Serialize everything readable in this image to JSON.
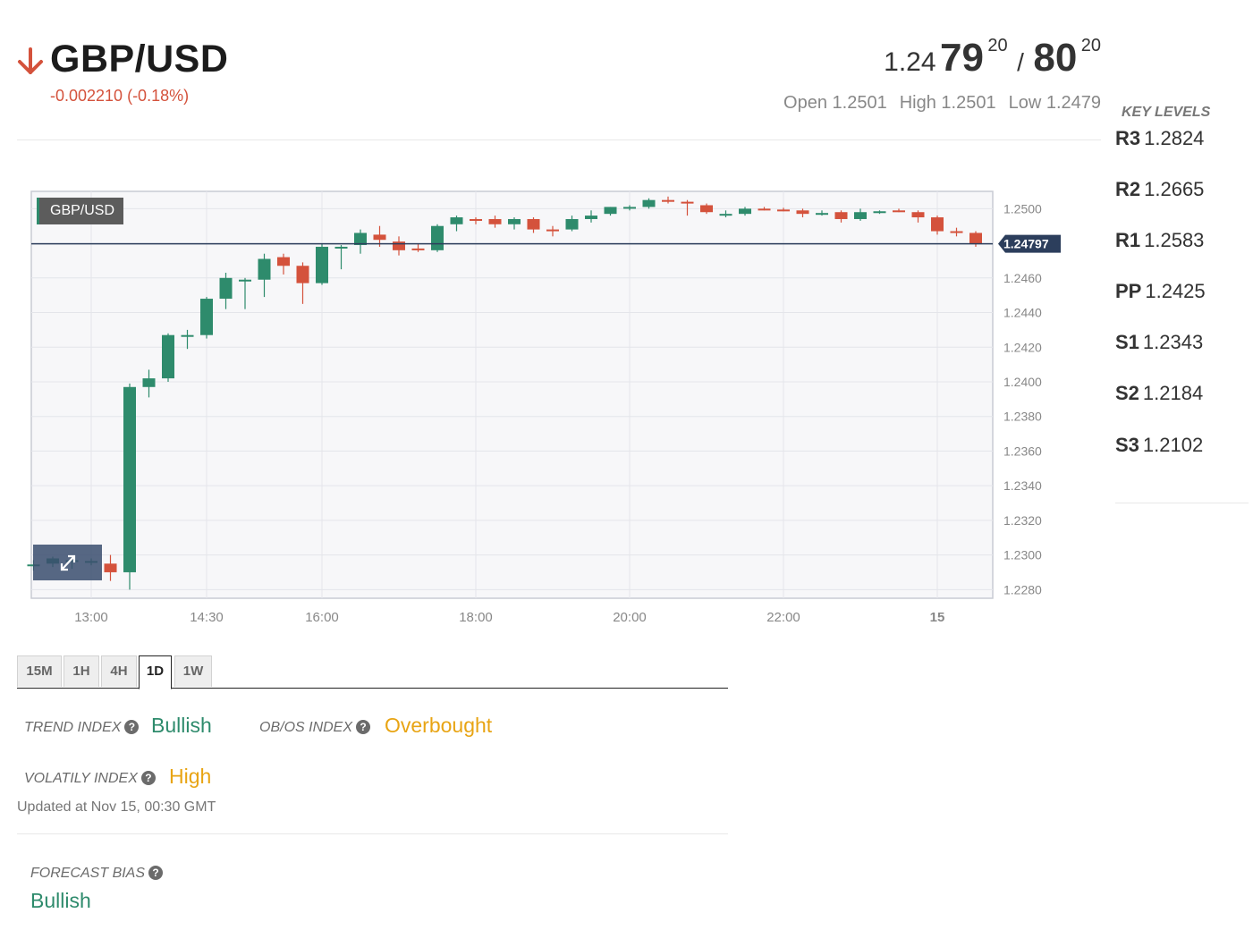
{
  "header": {
    "pair": "GBP/USD",
    "change": "-0.002210 (-0.18%)",
    "direction": "down",
    "bid_small": "1.24",
    "bid_big": "79",
    "bid_sup": "20",
    "slash": "/",
    "ask_big": "80",
    "ask_sup": "20",
    "open": "Open 1.2501",
    "high": "High 1.2501",
    "low": "Low 1.2479"
  },
  "key_levels": {
    "title": "KEY LEVELS",
    "items": [
      {
        "name": "R3",
        "value": "1.2824"
      },
      {
        "name": "R2",
        "value": "1.2665"
      },
      {
        "name": "R1",
        "value": "1.2583"
      },
      {
        "name": "PP",
        "value": "1.2425"
      },
      {
        "name": "S1",
        "value": "1.2343"
      },
      {
        "name": "S2",
        "value": "1.2184"
      },
      {
        "name": "S3",
        "value": "1.2102"
      }
    ]
  },
  "chart_data": {
    "type": "candlestick",
    "title": "GBP/USD",
    "current_price": 1.24797,
    "current_price_label": "1.24797",
    "ylim": [
      1.2275,
      1.251
    ],
    "y_ticks": [
      "1.2500",
      "1.2480",
      "1.2460",
      "1.2440",
      "1.2420",
      "1.2400",
      "1.2380",
      "1.2360",
      "1.2340",
      "1.2320",
      "1.2300",
      "1.2280"
    ],
    "x_ticks": [
      {
        "label": "13:00",
        "index": 3
      },
      {
        "label": "14:30",
        "index": 9
      },
      {
        "label": "16:00",
        "index": 15
      },
      {
        "label": "18:00",
        "index": 23
      },
      {
        "label": "20:00",
        "index": 31
      },
      {
        "label": "22:00",
        "index": 39
      },
      {
        "label": "15",
        "index": 47
      }
    ],
    "candles": [
      {
        "o": 1.2294,
        "h": 1.2297,
        "l": 1.2291,
        "c": 1.22945
      },
      {
        "o": 1.2295,
        "h": 1.2299,
        "l": 1.2293,
        "c": 1.2298
      },
      {
        "o": 1.2296,
        "h": 1.2299,
        "l": 1.2292,
        "c": 1.2297
      },
      {
        "o": 1.2296,
        "h": 1.2298,
        "l": 1.2294,
        "c": 1.22965
      },
      {
        "o": 1.2295,
        "h": 1.23,
        "l": 1.2285,
        "c": 1.229
      },
      {
        "o": 1.229,
        "h": 1.2399,
        "l": 1.228,
        "c": 1.2397
      },
      {
        "o": 1.2397,
        "h": 1.2407,
        "l": 1.2391,
        "c": 1.2402
      },
      {
        "o": 1.2402,
        "h": 1.2428,
        "l": 1.24,
        "c": 1.2427
      },
      {
        "o": 1.2426,
        "h": 1.243,
        "l": 1.2419,
        "c": 1.2427
      },
      {
        "o": 1.2427,
        "h": 1.2449,
        "l": 1.2425,
        "c": 1.2448
      },
      {
        "o": 1.2448,
        "h": 1.2463,
        "l": 1.2442,
        "c": 1.246
      },
      {
        "o": 1.2459,
        "h": 1.246,
        "l": 1.2442,
        "c": 1.2459
      },
      {
        "o": 1.2459,
        "h": 1.2474,
        "l": 1.2449,
        "c": 1.2471
      },
      {
        "o": 1.2472,
        "h": 1.2474,
        "l": 1.2462,
        "c": 1.2467
      },
      {
        "o": 1.2467,
        "h": 1.2469,
        "l": 1.2445,
        "c": 1.2457
      },
      {
        "o": 1.2457,
        "h": 1.248,
        "l": 1.2456,
        "c": 1.2478
      },
      {
        "o": 1.2478,
        "h": 1.2479,
        "l": 1.2465,
        "c": 1.2478
      },
      {
        "o": 1.2479,
        "h": 1.2488,
        "l": 1.2474,
        "c": 1.2486
      },
      {
        "o": 1.2485,
        "h": 1.249,
        "l": 1.2478,
        "c": 1.2482
      },
      {
        "o": 1.2481,
        "h": 1.2484,
        "l": 1.2473,
        "c": 1.2476
      },
      {
        "o": 1.2477,
        "h": 1.248,
        "l": 1.2475,
        "c": 1.2476
      },
      {
        "o": 1.2476,
        "h": 1.2491,
        "l": 1.2475,
        "c": 1.249
      },
      {
        "o": 1.2491,
        "h": 1.2496,
        "l": 1.2487,
        "c": 1.2495
      },
      {
        "o": 1.2494,
        "h": 1.2495,
        "l": 1.2491,
        "c": 1.2493
      },
      {
        "o": 1.2494,
        "h": 1.2496,
        "l": 1.2489,
        "c": 1.2491
      },
      {
        "o": 1.2491,
        "h": 1.2495,
        "l": 1.2488,
        "c": 1.2494
      },
      {
        "o": 1.2494,
        "h": 1.2495,
        "l": 1.2486,
        "c": 1.2488
      },
      {
        "o": 1.2488,
        "h": 1.249,
        "l": 1.2484,
        "c": 1.2487
      },
      {
        "o": 1.2488,
        "h": 1.2496,
        "l": 1.2487,
        "c": 1.2494
      },
      {
        "o": 1.2494,
        "h": 1.2499,
        "l": 1.2492,
        "c": 1.2496
      },
      {
        "o": 1.2497,
        "h": 1.2501,
        "l": 1.2496,
        "c": 1.2501
      },
      {
        "o": 1.25,
        "h": 1.2502,
        "l": 1.2499,
        "c": 1.2501
      },
      {
        "o": 1.2501,
        "h": 1.2506,
        "l": 1.25,
        "c": 1.2505
      },
      {
        "o": 1.2505,
        "h": 1.2507,
        "l": 1.2503,
        "c": 1.2504
      },
      {
        "o": 1.2504,
        "h": 1.2505,
        "l": 1.2496,
        "c": 1.2503
      },
      {
        "o": 1.2502,
        "h": 1.2503,
        "l": 1.2497,
        "c": 1.2498
      },
      {
        "o": 1.2497,
        "h": 1.2499,
        "l": 1.2495,
        "c": 1.2497
      },
      {
        "o": 1.2497,
        "h": 1.2501,
        "l": 1.2496,
        "c": 1.25
      },
      {
        "o": 1.25,
        "h": 1.2501,
        "l": 1.2499,
        "c": 1.24995
      },
      {
        "o": 1.24995,
        "h": 1.25005,
        "l": 1.24985,
        "c": 1.2499
      },
      {
        "o": 1.2499,
        "h": 1.25,
        "l": 1.2495,
        "c": 1.2497
      },
      {
        "o": 1.2497,
        "h": 1.2499,
        "l": 1.2496,
        "c": 1.24975
      },
      {
        "o": 1.2498,
        "h": 1.2499,
        "l": 1.2492,
        "c": 1.2494
      },
      {
        "o": 1.2494,
        "h": 1.25,
        "l": 1.2493,
        "c": 1.2498
      },
      {
        "o": 1.2498,
        "h": 1.2499,
        "l": 1.2497,
        "c": 1.24985
      },
      {
        "o": 1.2499,
        "h": 1.25,
        "l": 1.2498,
        "c": 1.24985
      },
      {
        "o": 1.2498,
        "h": 1.2499,
        "l": 1.2492,
        "c": 1.2495
      },
      {
        "o": 1.2495,
        "h": 1.2496,
        "l": 1.2485,
        "c": 1.2487
      },
      {
        "o": 1.2487,
        "h": 1.2489,
        "l": 1.2484,
        "c": 1.2486
      },
      {
        "o": 1.2486,
        "h": 1.2487,
        "l": 1.2478,
        "c": 1.248
      }
    ]
  },
  "timeframes": [
    "15M",
    "1H",
    "4H",
    "1D",
    "1W"
  ],
  "active_timeframe": "1D",
  "indices": {
    "trend_label": "TREND INDEX",
    "trend_value": "Bullish",
    "obos_label": "OB/OS INDEX",
    "obos_value": "Overbought",
    "volatility_label": "VOLATILY INDEX",
    "volatility_value": "High",
    "help_glyph": "?",
    "updated": "Updated at Nov 15, 00:30 GMT",
    "forecast_label": "FORECAST BIAS",
    "forecast_value": "Bullish"
  },
  "colors": {
    "bull": "#2e8b6c",
    "bear": "#d4523c",
    "amber": "#e8a413",
    "price_line": "#2c3e5c"
  }
}
